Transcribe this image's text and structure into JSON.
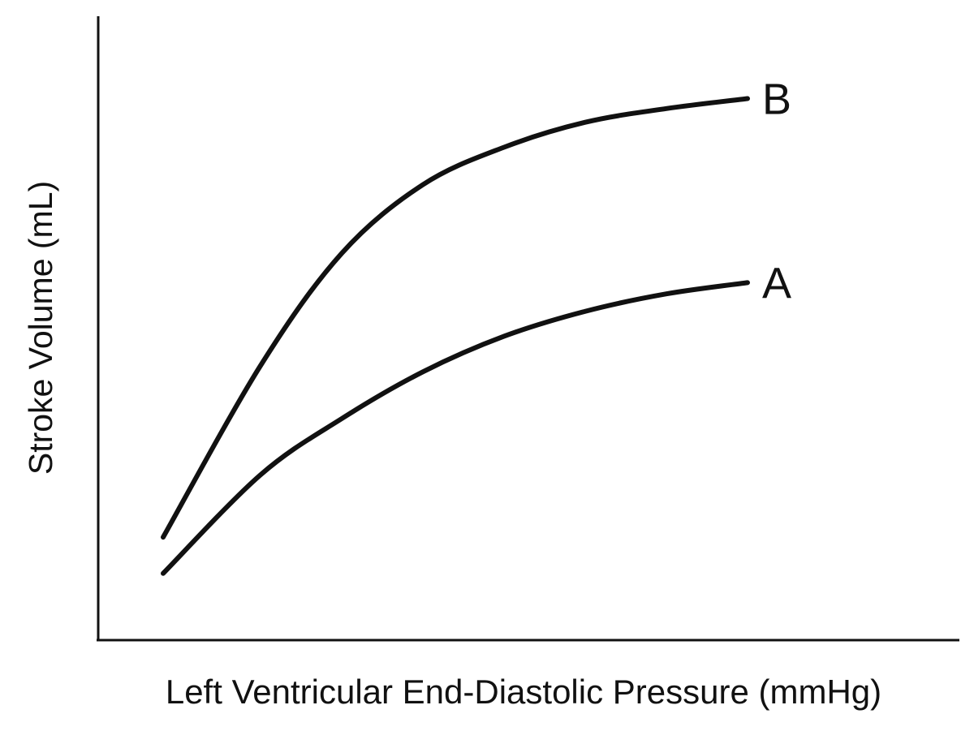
{
  "chart_data": {
    "type": "line",
    "title": "",
    "xlabel": "Left Ventricular End-Diastolic Pressure (mmHg)",
    "ylabel": "Stroke Volume (mL)",
    "xlim": [
      0,
      100
    ],
    "ylim": [
      0,
      100
    ],
    "grid": false,
    "legend": "none",
    "axis_ticks": false,
    "colors": {
      "line": "#111111",
      "axis": "#111111",
      "background": "#ffffff"
    },
    "series": [
      {
        "name": "B",
        "points": [
          [
            8,
            16.5
          ],
          [
            20,
            44
          ],
          [
            30,
            62
          ],
          [
            40,
            73
          ],
          [
            50,
            79
          ],
          [
            60,
            83
          ],
          [
            70,
            85.2
          ],
          [
            80,
            86.8
          ]
        ]
      },
      {
        "name": "A",
        "points": [
          [
            8,
            10.7
          ],
          [
            20,
            26.5
          ],
          [
            30,
            35.5
          ],
          [
            40,
            43
          ],
          [
            50,
            48.7
          ],
          [
            60,
            52.7
          ],
          [
            70,
            55.5
          ],
          [
            80,
            57.3
          ]
        ]
      }
    ]
  }
}
